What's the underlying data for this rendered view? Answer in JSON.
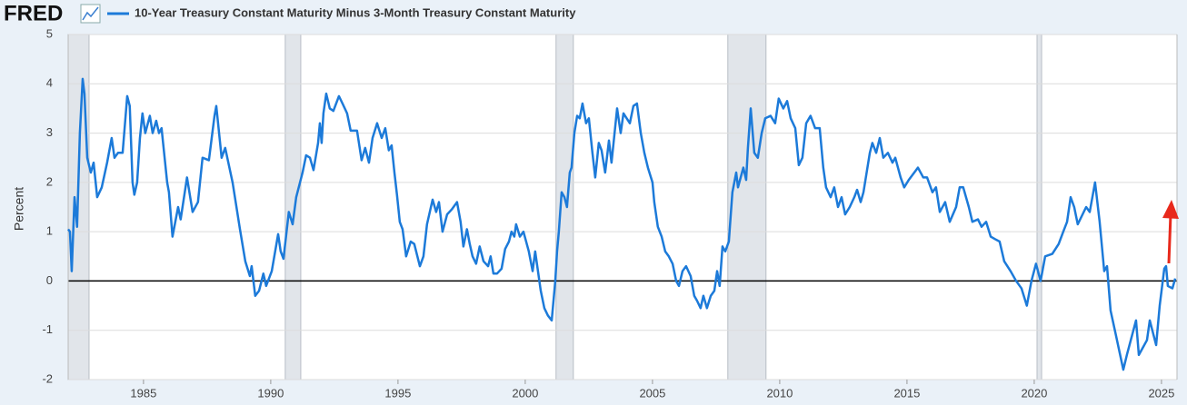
{
  "header": {
    "logo": "FRED"
  },
  "chart_data": {
    "type": "line",
    "y_label": "Percent",
    "xlim": [
      1982.04,
      2025.61
    ],
    "xticks": [
      1985,
      1990,
      1995,
      2000,
      2005,
      2010,
      2015,
      2020,
      2025
    ],
    "ylim": [
      -2,
      5
    ],
    "yticks": [
      -2,
      -1,
      0,
      1,
      2,
      3,
      4,
      5
    ],
    "grid": true,
    "zero_line": true,
    "recession_color": "#e1e5ea",
    "recessions": [
      {
        "start": 1982.04,
        "end": 1982.86
      },
      {
        "start": 1990.57,
        "end": 1991.18
      },
      {
        "start": 2001.21,
        "end": 2001.89
      },
      {
        "start": 2007.96,
        "end": 2009.46
      },
      {
        "start": 2020.11,
        "end": 2020.29
      }
    ],
    "x": [
      1982.04,
      1982.11,
      1982.18,
      1982.29,
      1982.39,
      1982.5,
      1982.61,
      1982.68,
      1982.79,
      1982.93,
      1983.04,
      1983.18,
      1983.36,
      1983.57,
      1983.75,
      1983.86,
      1984.0,
      1984.18,
      1984.36,
      1984.46,
      1984.57,
      1984.64,
      1984.75,
      1984.86,
      1984.96,
      1985.07,
      1985.25,
      1985.36,
      1985.5,
      1985.61,
      1985.71,
      1985.93,
      1986.0,
      1986.14,
      1986.25,
      1986.36,
      1986.46,
      1986.71,
      1986.93,
      1987.14,
      1987.32,
      1987.57,
      1987.79,
      1987.86,
      1988.07,
      1988.21,
      1988.5,
      1988.79,
      1989.0,
      1989.18,
      1989.25,
      1989.39,
      1989.54,
      1989.71,
      1989.82,
      1990.04,
      1990.29,
      1990.39,
      1990.5,
      1990.71,
      1990.86,
      1991.0,
      1991.25,
      1991.39,
      1991.54,
      1991.68,
      1991.86,
      1991.93,
      1992.0,
      1992.07,
      1992.18,
      1992.32,
      1992.46,
      1992.68,
      1992.82,
      1993.0,
      1993.14,
      1993.39,
      1993.57,
      1993.71,
      1993.86,
      1994.0,
      1994.18,
      1994.36,
      1994.5,
      1994.64,
      1994.75,
      1994.86,
      1994.96,
      1995.07,
      1995.18,
      1995.32,
      1995.5,
      1995.64,
      1995.86,
      1996.0,
      1996.14,
      1996.36,
      1996.5,
      1996.61,
      1996.75,
      1996.93,
      1997.11,
      1997.32,
      1997.46,
      1997.57,
      1997.71,
      1997.82,
      1997.93,
      1998.07,
      1998.21,
      1998.36,
      1998.54,
      1998.64,
      1998.75,
      1998.89,
      1999.07,
      1999.21,
      1999.36,
      1999.46,
      1999.57,
      1999.64,
      1999.79,
      1999.93,
      2000.14,
      2000.29,
      2000.39,
      2000.61,
      2000.75,
      2000.89,
      2001.04,
      2001.18,
      2001.25,
      2001.32,
      2001.43,
      2001.54,
      2001.64,
      2001.75,
      2001.82,
      2001.93,
      2002.04,
      2002.14,
      2002.25,
      2002.39,
      2002.5,
      2002.64,
      2002.75,
      2002.89,
      2003.0,
      2003.14,
      2003.29,
      2003.39,
      2003.61,
      2003.75,
      2003.86,
      2004.11,
      2004.25,
      2004.39,
      2004.54,
      2004.68,
      2004.82,
      2005.0,
      2005.07,
      2005.21,
      2005.36,
      2005.5,
      2005.64,
      2005.79,
      2005.93,
      2006.04,
      2006.18,
      2006.32,
      2006.5,
      2006.64,
      2006.75,
      2006.89,
      2007.0,
      2007.14,
      2007.29,
      2007.43,
      2007.54,
      2007.64,
      2007.75,
      2007.86,
      2008.0,
      2008.14,
      2008.29,
      2008.36,
      2008.57,
      2008.68,
      2008.75,
      2008.86,
      2009.0,
      2009.14,
      2009.29,
      2009.43,
      2009.64,
      2009.82,
      2009.96,
      2010.14,
      2010.29,
      2010.43,
      2010.61,
      2010.75,
      2010.89,
      2011.04,
      2011.21,
      2011.39,
      2011.57,
      2011.71,
      2011.82,
      2012.0,
      2012.14,
      2012.29,
      2012.43,
      2012.57,
      2012.75,
      2012.93,
      2013.04,
      2013.18,
      2013.29,
      2013.54,
      2013.64,
      2013.79,
      2013.93,
      2014.07,
      2014.25,
      2014.43,
      2014.54,
      2014.75,
      2014.89,
      2015.07,
      2015.43,
      2015.64,
      2015.79,
      2016.0,
      2016.14,
      2016.29,
      2016.5,
      2016.68,
      2016.93,
      2017.07,
      2017.21,
      2017.43,
      2017.57,
      2017.79,
      2017.93,
      2018.11,
      2018.29,
      2018.46,
      2018.64,
      2018.82,
      2019.07,
      2019.29,
      2019.5,
      2019.71,
      2019.89,
      2020.07,
      2020.25,
      2020.43,
      2020.71,
      2020.96,
      2021.14,
      2021.29,
      2021.43,
      2021.57,
      2021.71,
      2022.04,
      2022.18,
      2022.39,
      2022.57,
      2022.75,
      2022.86,
      2023.0,
      2023.21,
      2023.5,
      2023.64,
      2024.0,
      2024.11,
      2024.43,
      2024.54,
      2024.79,
      2024.93,
      2025.11,
      2025.18,
      2025.25,
      2025.43,
      2025.54
    ],
    "series": [
      {
        "name": "10-Year Treasury Constant Maturity Minus 3-Month Treasury Constant Maturity",
        "color": "#1c7ad9",
        "values": [
          1.05,
          1.0,
          0.2,
          1.7,
          1.1,
          3.0,
          4.1,
          3.8,
          2.5,
          2.2,
          2.4,
          1.7,
          1.9,
          2.4,
          2.9,
          2.5,
          2.6,
          2.6,
          3.75,
          3.55,
          2.0,
          1.75,
          2.0,
          2.9,
          3.4,
          3.0,
          3.35,
          3.0,
          3.25,
          3.0,
          3.1,
          2.0,
          1.8,
          0.9,
          1.2,
          1.5,
          1.25,
          2.1,
          1.4,
          1.6,
          2.5,
          2.45,
          3.35,
          3.55,
          2.5,
          2.7,
          2.0,
          1.05,
          0.4,
          0.1,
          0.3,
          -0.3,
          -0.2,
          0.15,
          -0.1,
          0.2,
          0.95,
          0.6,
          0.45,
          1.4,
          1.15,
          1.7,
          2.2,
          2.55,
          2.5,
          2.25,
          2.8,
          3.2,
          2.8,
          3.4,
          3.8,
          3.5,
          3.45,
          3.75,
          3.6,
          3.4,
          3.05,
          3.05,
          2.45,
          2.7,
          2.4,
          2.9,
          3.2,
          2.9,
          3.1,
          2.65,
          2.75,
          2.2,
          1.75,
          1.2,
          1.05,
          0.5,
          0.8,
          0.75,
          0.3,
          0.5,
          1.15,
          1.65,
          1.4,
          1.6,
          1.0,
          1.35,
          1.45,
          1.6,
          1.2,
          0.7,
          1.05,
          0.75,
          0.5,
          0.35,
          0.7,
          0.4,
          0.3,
          0.5,
          0.15,
          0.15,
          0.25,
          0.65,
          0.8,
          1.0,
          0.9,
          1.15,
          0.9,
          1.0,
          0.6,
          0.2,
          0.6,
          -0.2,
          -0.55,
          -0.7,
          -0.8,
          0.0,
          0.6,
          1.0,
          1.8,
          1.7,
          1.5,
          2.2,
          2.3,
          3.0,
          3.35,
          3.3,
          3.6,
          3.2,
          3.3,
          2.6,
          2.1,
          2.8,
          2.65,
          2.2,
          2.85,
          2.4,
          3.5,
          3.0,
          3.4,
          3.2,
          3.55,
          3.6,
          3.0,
          2.6,
          2.3,
          2.0,
          1.6,
          1.1,
          0.9,
          0.6,
          0.5,
          0.35,
          0.0,
          -0.1,
          0.2,
          0.3,
          0.1,
          -0.3,
          -0.4,
          -0.55,
          -0.3,
          -0.55,
          -0.3,
          -0.2,
          0.2,
          -0.1,
          0.7,
          0.6,
          0.8,
          1.8,
          2.2,
          1.9,
          2.3,
          2.05,
          2.7,
          3.5,
          2.6,
          2.5,
          3.0,
          3.3,
          3.35,
          3.2,
          3.7,
          3.5,
          3.65,
          3.3,
          3.1,
          2.35,
          2.5,
          3.2,
          3.35,
          3.1,
          3.1,
          2.3,
          1.9,
          1.7,
          1.9,
          1.5,
          1.7,
          1.35,
          1.5,
          1.7,
          1.85,
          1.6,
          1.8,
          2.6,
          2.8,
          2.6,
          2.9,
          2.5,
          2.6,
          2.4,
          2.5,
          2.1,
          1.9,
          2.05,
          2.3,
          2.1,
          2.1,
          1.8,
          1.9,
          1.4,
          1.6,
          1.2,
          1.5,
          1.9,
          1.9,
          1.5,
          1.2,
          1.25,
          1.1,
          1.2,
          0.9,
          0.85,
          0.8,
          0.4,
          0.2,
          0.0,
          -0.15,
          -0.5,
          0.0,
          0.35,
          0.0,
          0.5,
          0.55,
          0.75,
          1.0,
          1.2,
          1.7,
          1.5,
          1.15,
          1.5,
          1.4,
          2.0,
          1.2,
          0.2,
          0.3,
          -0.6,
          -1.1,
          -1.8,
          -1.5,
          -0.8,
          -1.5,
          -1.2,
          -0.8,
          -1.3,
          -0.5,
          0.25,
          0.3,
          -0.1,
          -0.15,
          0.05
        ]
      }
    ]
  }
}
